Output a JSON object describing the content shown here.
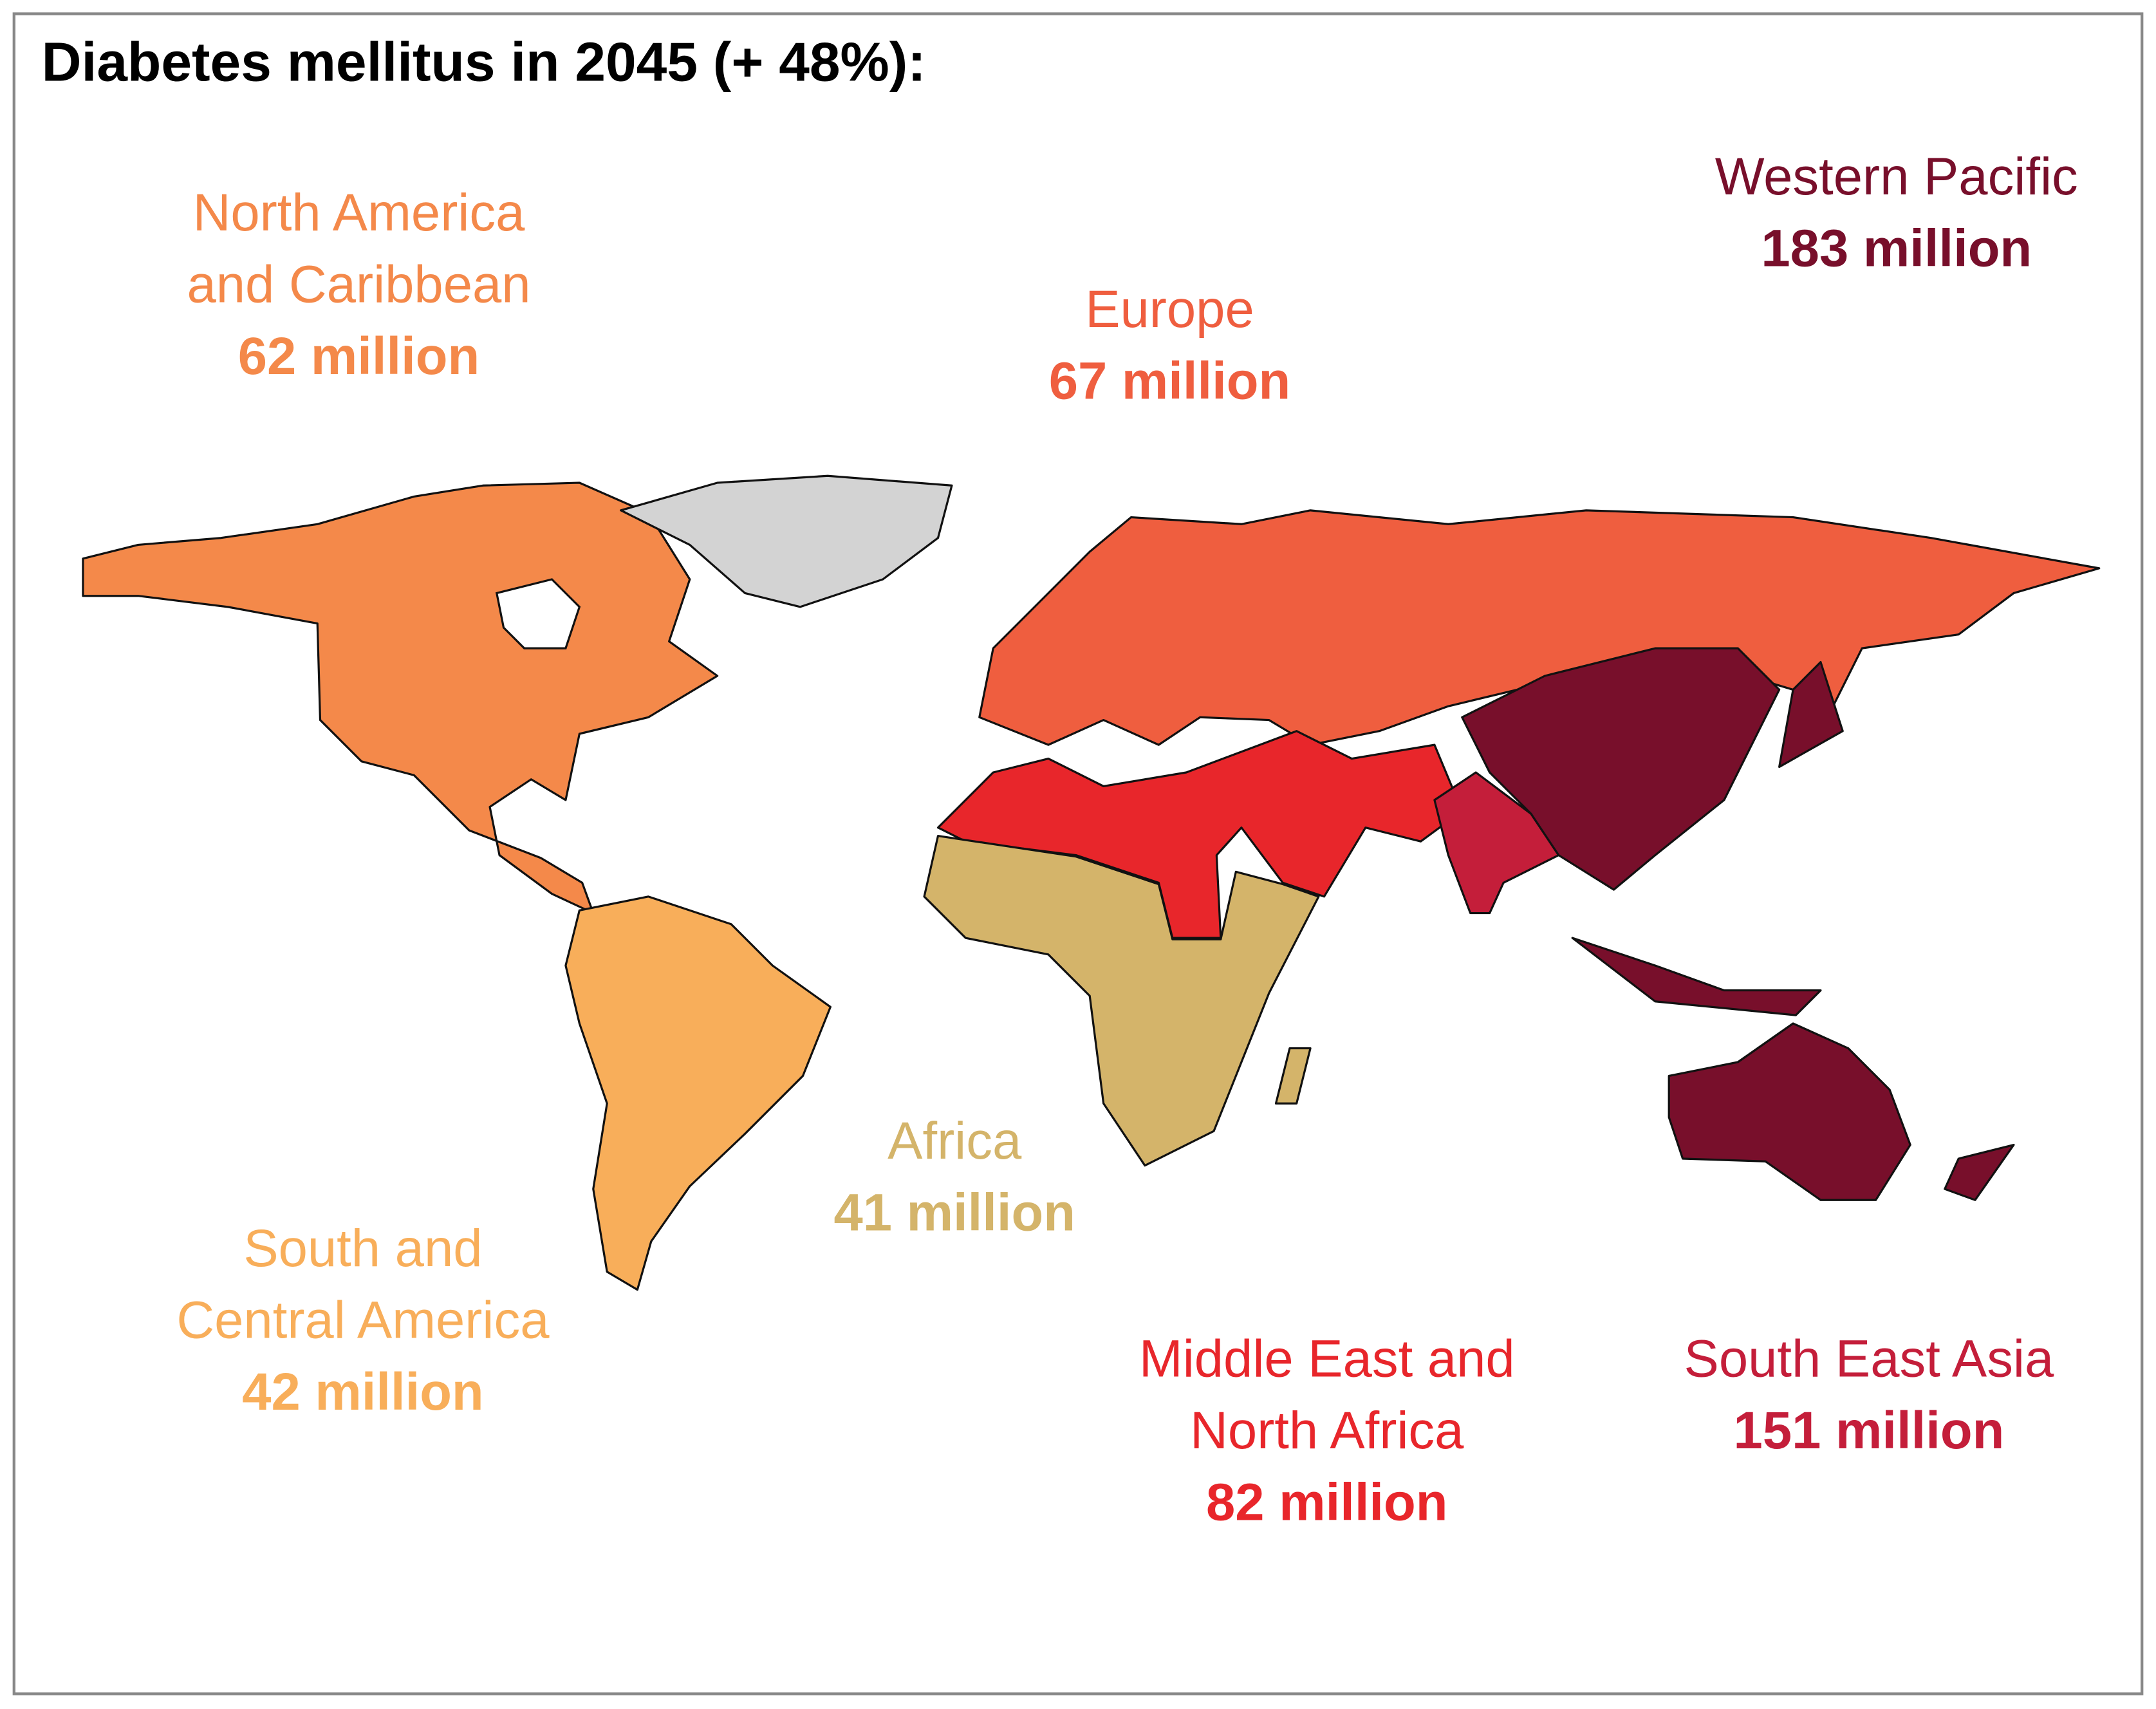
{
  "title": "Diabetes mellitus in 2045 (+ 48%):",
  "regions": [
    {
      "name": [
        "North America",
        "and Caribbean"
      ],
      "value": "62 million"
    },
    {
      "name": [
        "Europe"
      ],
      "value": "67 million"
    },
    {
      "name": [
        "Western Pacific"
      ],
      "value": "183 million"
    },
    {
      "name": [
        "Africa"
      ],
      "value": "41 million"
    },
    {
      "name": [
        "South and",
        "Central America"
      ],
      "value": "42 million"
    },
    {
      "name": [
        "Middle East and",
        "North Africa"
      ],
      "value": "82 million"
    },
    {
      "name": [
        "South East Asia"
      ],
      "value": "151 million"
    }
  ]
}
